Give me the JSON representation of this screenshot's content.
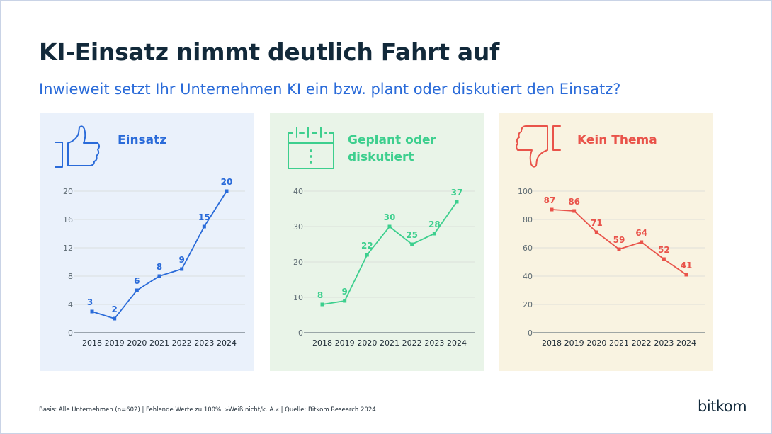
{
  "header": {
    "title": "KI-Einsatz nimmt deutlich Fahrt auf",
    "subtitle": "Inwieweit setzt Ihr Unternehmen KI ein bzw. plant oder diskutiert den Einsatz?"
  },
  "footer": {
    "note": "Basis: Alle Unternehmen (n=602) | Fehlende Werte zu 100%: »Weiß nicht/k. A.« | Quelle: Bitkom Research 2024",
    "brand": "bitkom"
  },
  "chart_data": [
    {
      "type": "line",
      "title": "Einsatz",
      "icon": "thumbs-up-icon",
      "color": "#2a6bd9",
      "background": "#eaf1fb",
      "x": [
        "2018",
        "2019",
        "2020",
        "2021",
        "2022",
        "2023",
        "2024"
      ],
      "values": [
        3,
        2,
        6,
        8,
        9,
        15,
        20
      ],
      "ylim": [
        0,
        20
      ],
      "yticks": [
        0,
        4,
        8,
        12,
        16,
        20
      ],
      "grid": true
    },
    {
      "type": "line",
      "title": "Geplant oder\ndiskutiert",
      "icon": "calendar-icon",
      "color": "#3dcf8e",
      "background": "#e9f4e8",
      "x": [
        "2018",
        "2019",
        "2020",
        "2021",
        "2022",
        "2023",
        "2024"
      ],
      "values": [
        8,
        9,
        22,
        30,
        25,
        28,
        37
      ],
      "ylim": [
        0,
        40
      ],
      "yticks": [
        0,
        10,
        20,
        30,
        40
      ],
      "grid": true
    },
    {
      "type": "line",
      "title": "Kein Thema",
      "icon": "thumbs-down-icon",
      "color": "#e9534a",
      "background": "#f9f3e1",
      "x": [
        "2018",
        "2019",
        "2020",
        "2021",
        "2022",
        "2023",
        "2024"
      ],
      "values": [
        87,
        86,
        71,
        59,
        64,
        52,
        41
      ],
      "ylim": [
        0,
        100
      ],
      "yticks": [
        0,
        20,
        40,
        60,
        80,
        100
      ],
      "grid": true
    }
  ]
}
